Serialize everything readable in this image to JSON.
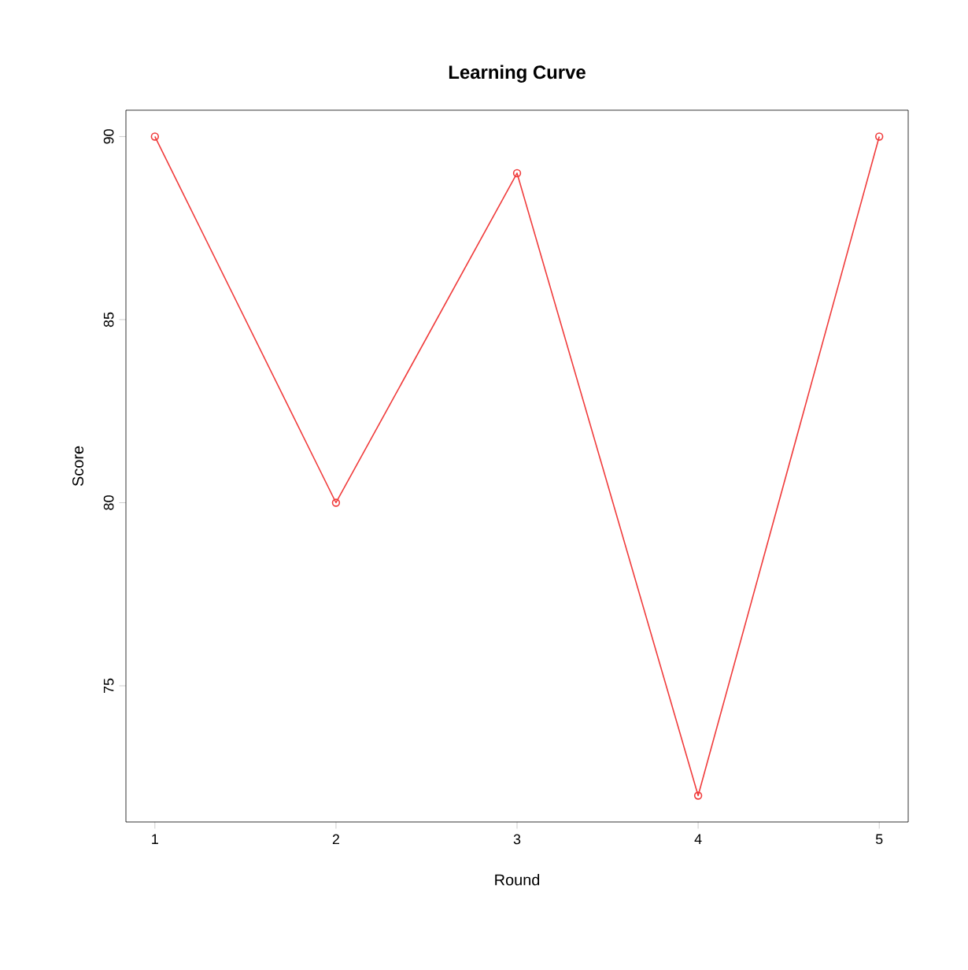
{
  "chart_data": {
    "type": "line",
    "title": "Learning Curve",
    "xlabel": "Round",
    "ylabel": "Score",
    "x": [
      1,
      2,
      3,
      4,
      5
    ],
    "series": [
      {
        "color": "#f03c3c",
        "values": [
          90,
          80,
          89,
          72,
          90
        ]
      }
    ],
    "xlim": [
      0.84,
      5.16
    ],
    "ylim": [
      71.28,
      90.72
    ],
    "xticks": [
      1,
      2,
      3,
      4,
      5
    ],
    "yticks": [
      75,
      80,
      85,
      90
    ],
    "marker": "circle",
    "line_style": "solid"
  }
}
